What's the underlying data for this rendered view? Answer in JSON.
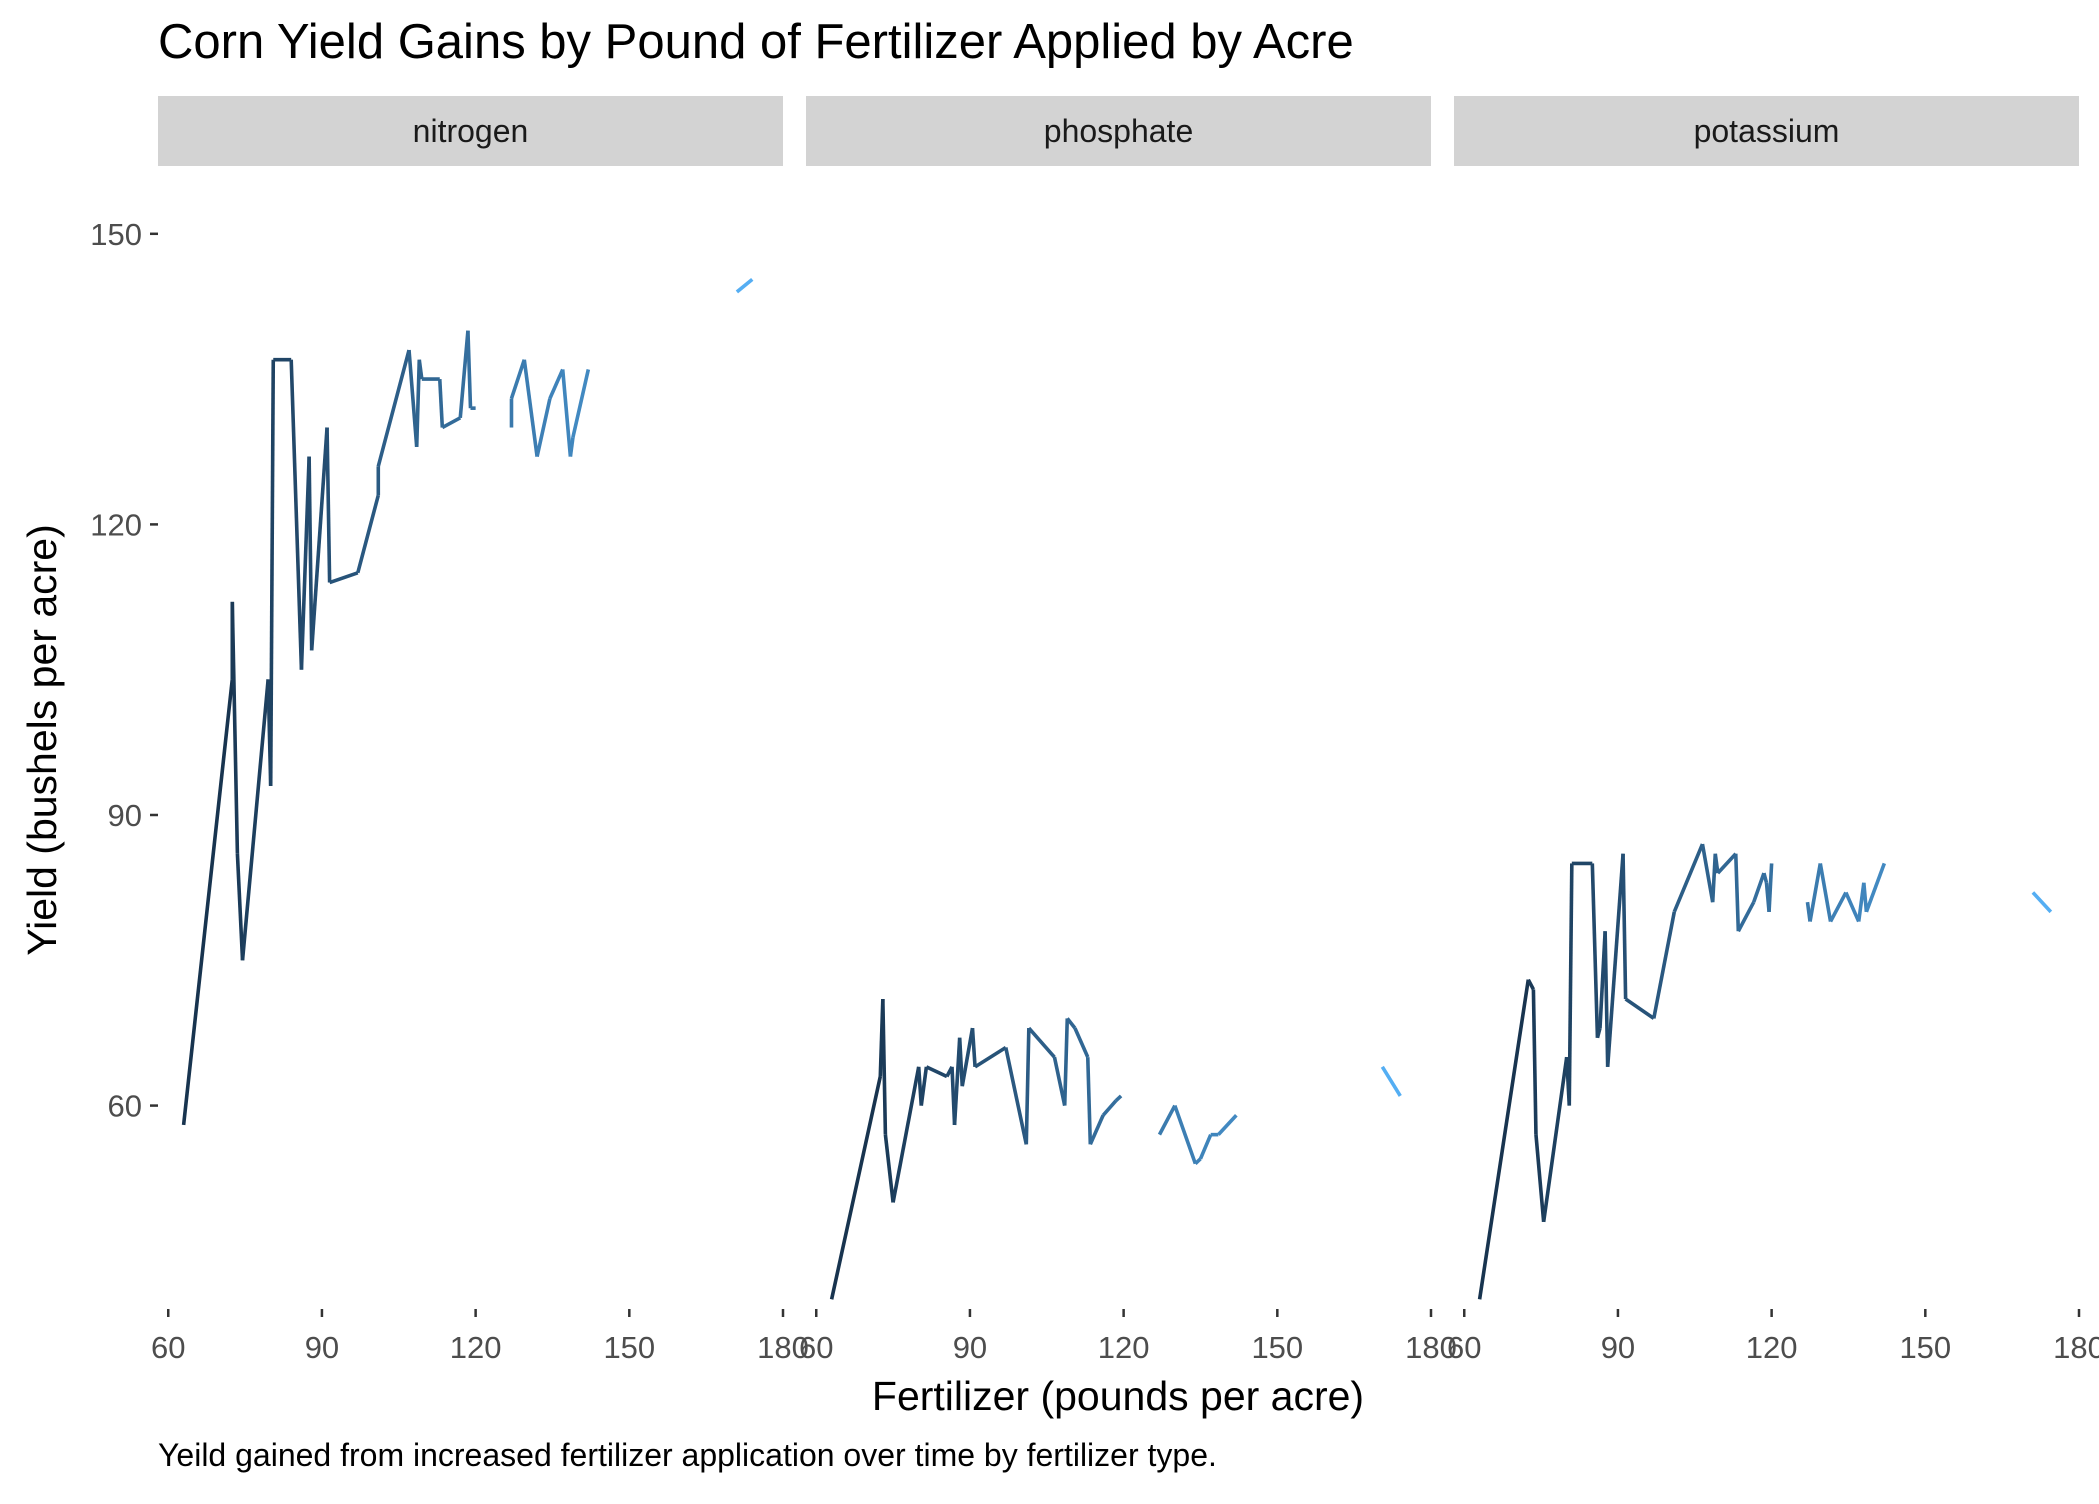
{
  "chart_data": {
    "type": "line",
    "title": "Corn Yield Gains by Pound of Fertilizer Applied by Acre",
    "xlabel": "Fertilizer (pounds per acre)",
    "ylabel": "Yield (bushels per acre)",
    "caption": "Yeild gained from increased fertilizer application over time by fertilizer type.",
    "xlim": [
      58,
      180
    ],
    "ylim": [
      39,
      157
    ],
    "x_ticks": [
      60,
      90,
      120,
      150,
      180
    ],
    "x_tick_labels": [
      "60",
      "90",
      "120",
      "150",
      "180"
    ],
    "y_ticks": [
      60,
      90,
      120,
      150
    ],
    "y_tick_labels": [
      "60",
      "90",
      "120",
      "150"
    ],
    "grid": false,
    "legend": "none",
    "colors": {
      "strip_fill": "#d3d3d3",
      "axis_text": "#4d4d4d",
      "line_gradient": [
        "#132b43",
        "#56b1f7"
      ]
    },
    "panels": [
      {
        "name": "nitrogen",
        "segments": [
          [
            [
              63,
              58
            ],
            [
              72.5,
              104
            ],
            [
              72.5,
              112
            ],
            [
              73.5,
              86
            ],
            [
              74.5,
              75
            ],
            [
              79.5,
              104
            ],
            [
              80,
              93
            ],
            [
              80.5,
              137
            ],
            [
              84,
              137
            ],
            [
              86,
              105
            ],
            [
              87.5,
              127
            ],
            [
              88,
              107
            ],
            [
              91,
              130
            ],
            [
              91.5,
              114
            ],
            [
              97,
              115
            ],
            [
              101,
              123
            ],
            [
              101,
              126
            ],
            [
              107,
              138
            ],
            [
              108.5,
              128
            ],
            [
              109,
              137
            ],
            [
              109.5,
              135
            ],
            [
              113,
              135
            ],
            [
              113.5,
              130
            ],
            [
              117,
              131
            ],
            [
              118.5,
              140
            ],
            [
              119,
              132
            ],
            [
              120,
              132
            ]
          ],
          [
            [
              127,
              130
            ],
            [
              127,
              133
            ],
            [
              129.5,
              137
            ],
            [
              132,
              127
            ],
            [
              134.5,
              133
            ],
            [
              137,
              136
            ],
            [
              138.5,
              127
            ],
            [
              139,
              129
            ],
            [
              142,
              136
            ]
          ],
          [
            [
              171,
              144
            ],
            [
              174,
              145.3
            ]
          ]
        ]
      },
      {
        "name": "phosphate",
        "segments": [
          [
            [
              63,
              40
            ],
            [
              72.5,
              63
            ],
            [
              73,
              71
            ],
            [
              73.5,
              57
            ],
            [
              75,
              50
            ],
            [
              80,
              64
            ],
            [
              80.5,
              60
            ],
            [
              81.5,
              64
            ],
            [
              85.5,
              63
            ],
            [
              86.5,
              64
            ],
            [
              87,
              58
            ],
            [
              88,
              67
            ],
            [
              88.5,
              62
            ],
            [
              90.5,
              68
            ],
            [
              91,
              64
            ],
            [
              97,
              66
            ],
            [
              101,
              56
            ],
            [
              101.5,
              68
            ],
            [
              106.5,
              65
            ],
            [
              108.5,
              60
            ],
            [
              109,
              69
            ],
            [
              110.5,
              68
            ],
            [
              113,
              65
            ],
            [
              113.5,
              56
            ],
            [
              116,
              59
            ],
            [
              118.5,
              60.5
            ],
            [
              119.5,
              61
            ]
          ],
          [
            [
              127,
              57
            ],
            [
              130,
              60
            ],
            [
              134,
              54
            ],
            [
              135,
              54.5
            ],
            [
              137,
              57
            ],
            [
              138.5,
              57
            ],
            [
              142,
              59
            ]
          ],
          [
            [
              170.5,
              64
            ],
            [
              174,
              61
            ]
          ]
        ]
      },
      {
        "name": "potassium",
        "segments": [
          [
            [
              63,
              40
            ],
            [
              72.5,
              73
            ],
            [
              73.5,
              72
            ],
            [
              74,
              57
            ],
            [
              75.5,
              48
            ],
            [
              80,
              65
            ],
            [
              80.5,
              60
            ],
            [
              81,
              85
            ],
            [
              85,
              85
            ],
            [
              86,
              67
            ],
            [
              86.5,
              68
            ],
            [
              87.5,
              78
            ],
            [
              88,
              64
            ],
            [
              91,
              86
            ],
            [
              91.5,
              71
            ],
            [
              97,
              69
            ],
            [
              101,
              80
            ],
            [
              106.5,
              87
            ],
            [
              108.5,
              81
            ],
            [
              109,
              86
            ],
            [
              109.5,
              84
            ],
            [
              113,
              86
            ],
            [
              113.5,
              78
            ],
            [
              116.5,
              81
            ],
            [
              118.5,
              84
            ],
            [
              119,
              83
            ],
            [
              119.5,
              80
            ],
            [
              120,
              85
            ]
          ],
          [
            [
              127,
              81
            ],
            [
              127.5,
              79
            ],
            [
              129.5,
              85
            ],
            [
              131.5,
              79
            ],
            [
              134.5,
              82
            ],
            [
              137,
              79
            ],
            [
              138,
              83
            ],
            [
              138.5,
              80
            ],
            [
              142,
              85
            ]
          ],
          [
            [
              171,
              82
            ],
            [
              174.5,
              80
            ]
          ]
        ]
      }
    ]
  }
}
